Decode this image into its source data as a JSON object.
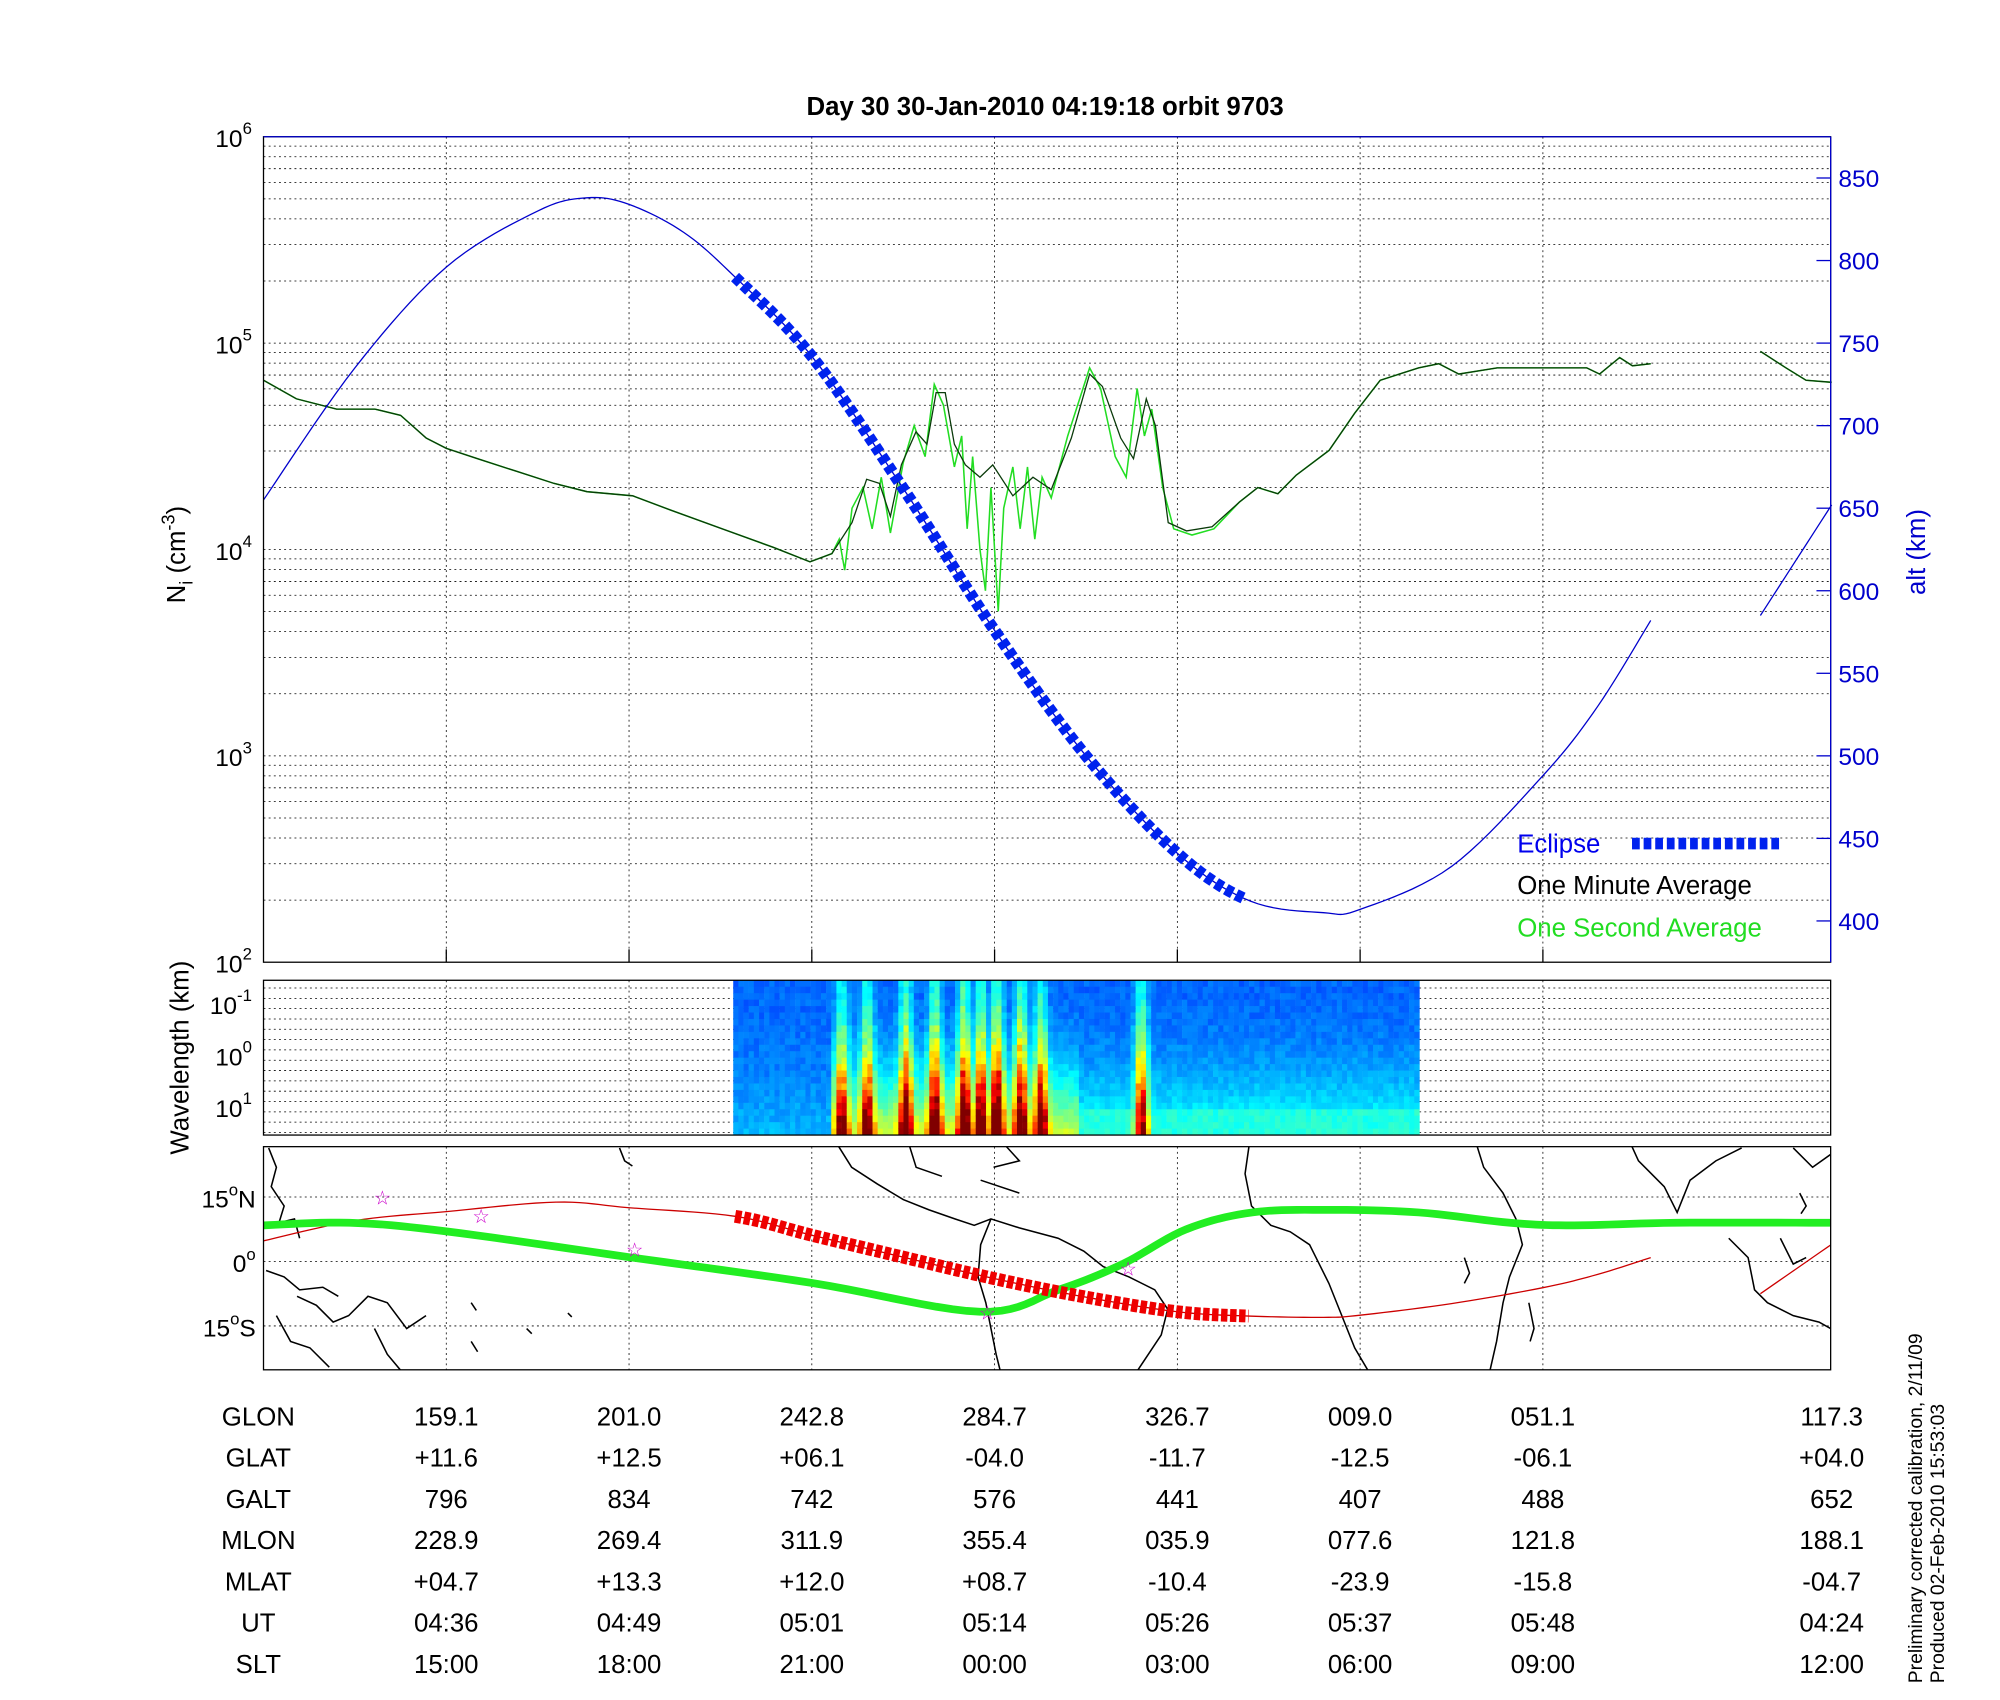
{
  "title": "Day 30  30-Jan-2010 04:19:18   orbit 9703",
  "colors": {
    "alt": "#0000cc",
    "eclipse": "#0022ee",
    "minute": "#000000",
    "second": "#22dd22",
    "track": "#cc0000",
    "eclipse_track": "#ee0000",
    "mag_equator": "#22ee22",
    "star": "#cc00cc"
  },
  "chart_data": [
    {
      "type": "line",
      "panel": "density",
      "title": "Day 30  30-Jan-2010 04:19:18   orbit 9703",
      "xlabel": "",
      "ylabel": "N",
      "ylabel_sub": "i",
      "ylabel_unit": " (cm",
      "ylabel_exp": "-3",
      "ylabel_close": ")",
      "yscale": "log",
      "ylim": [
        100,
        1000000
      ],
      "yticks": [
        {
          "base": "10",
          "exp": "2",
          "log": 2
        },
        {
          "base": "10",
          "exp": "3",
          "log": 3
        },
        {
          "base": "10",
          "exp": "4",
          "log": 4
        },
        {
          "base": "10",
          "exp": "5",
          "log": 5
        },
        {
          "base": "10",
          "exp": "6",
          "log": 6
        }
      ],
      "xlim": [
        0,
        8.58
      ],
      "x_note": "x in units of bottom-table column index",
      "y2label": "alt (km)",
      "y2lim": [
        375,
        875
      ],
      "y2ticks": [
        400,
        450,
        500,
        550,
        600,
        650,
        700,
        750,
        800,
        850
      ],
      "grid": true,
      "legend": {
        "position": "bottom-right",
        "entries": [
          {
            "label": "Eclipse",
            "key": "eclipse"
          },
          {
            "label": "One Minute Average",
            "key": "minute"
          },
          {
            "label": "One Second Average",
            "key": "second"
          }
        ]
      },
      "series": [
        {
          "name": "One Minute Average",
          "key": "minute",
          "log10_Ni_segments": [
            [
              [
                0,
                4.82
              ],
              [
                0.18,
                4.73
              ],
              [
                0.4,
                4.68
              ],
              [
                0.61,
                4.68
              ],
              [
                0.75,
                4.65
              ],
              [
                0.89,
                4.54
              ],
              [
                1,
                4.49
              ],
              [
                1.17,
                4.44
              ],
              [
                1.38,
                4.38
              ],
              [
                1.59,
                4.32
              ],
              [
                1.77,
                4.28
              ],
              [
                2.02,
                4.26
              ],
              [
                2.23,
                4.19
              ],
              [
                2.51,
                4.1
              ],
              [
                2.79,
                4.01
              ],
              [
                2.99,
                3.94
              ],
              [
                3.11,
                3.98
              ],
              [
                3.22,
                4.13
              ],
              [
                3.3,
                4.34
              ],
              [
                3.37,
                4.32
              ],
              [
                3.43,
                4.16
              ],
              [
                3.49,
                4.41
              ],
              [
                3.57,
                4.57
              ],
              [
                3.63,
                4.51
              ],
              [
                3.68,
                4.76
              ],
              [
                3.73,
                4.76
              ],
              [
                3.78,
                4.51
              ],
              [
                3.84,
                4.41
              ],
              [
                3.92,
                4.35
              ],
              [
                3.99,
                4.41
              ],
              [
                4.1,
                4.26
              ],
              [
                4.21,
                4.35
              ],
              [
                4.31,
                4.29
              ],
              [
                4.42,
                4.54
              ],
              [
                4.52,
                4.85
              ],
              [
                4.59,
                4.79
              ],
              [
                4.69,
                4.54
              ],
              [
                4.76,
                4.44
              ],
              [
                4.83,
                4.73
              ],
              [
                4.88,
                4.6
              ],
              [
                4.95,
                4.13
              ],
              [
                5.05,
                4.09
              ],
              [
                5.19,
                4.11
              ],
              [
                5.34,
                4.23
              ],
              [
                5.44,
                4.3
              ],
              [
                5.55,
                4.27
              ],
              [
                5.65,
                4.36
              ],
              [
                5.83,
                4.48
              ],
              [
                5.97,
                4.66
              ],
              [
                6.11,
                4.82
              ],
              [
                6.32,
                4.88
              ],
              [
                6.43,
                4.9
              ],
              [
                6.54,
                4.85
              ],
              [
                6.75,
                4.88
              ],
              [
                7.03,
                4.88
              ],
              [
                7.24,
                4.88
              ],
              [
                7.31,
                4.85
              ],
              [
                7.42,
                4.93
              ],
              [
                7.49,
                4.89
              ],
              [
                7.59,
                4.9
              ]
            ],
            [
              [
                8.19,
                4.96
              ],
              [
                8.33,
                4.88
              ],
              [
                8.44,
                4.82
              ],
              [
                8.58,
                4.81
              ]
            ]
          ]
        },
        {
          "name": "One Second Average",
          "key": "second",
          "log10_Ni_spikes": [
            [
              3.11,
              3.98
            ],
            [
              3.15,
              4.05
            ],
            [
              3.18,
              3.9
            ],
            [
              3.22,
              4.2
            ],
            [
              3.28,
              4.3
            ],
            [
              3.33,
              4.1
            ],
            [
              3.38,
              4.35
            ],
            [
              3.43,
              4.08
            ],
            [
              3.5,
              4.42
            ],
            [
              3.56,
              4.6
            ],
            [
              3.62,
              4.45
            ],
            [
              3.67,
              4.8
            ],
            [
              3.72,
              4.7
            ],
            [
              3.78,
              4.4
            ],
            [
              3.82,
              4.55
            ],
            [
              3.85,
              4.1
            ],
            [
              3.88,
              4.45
            ],
            [
              3.92,
              4.0
            ],
            [
              3.95,
              3.8
            ],
            [
              3.98,
              4.3
            ],
            [
              4.02,
              3.7
            ],
            [
              4.05,
              4.2
            ],
            [
              4.1,
              4.4
            ],
            [
              4.14,
              4.1
            ],
            [
              4.18,
              4.4
            ],
            [
              4.22,
              4.05
            ],
            [
              4.26,
              4.35
            ],
            [
              4.31,
              4.25
            ],
            [
              4.4,
              4.55
            ],
            [
              4.52,
              4.88
            ],
            [
              4.58,
              4.78
            ],
            [
              4.66,
              4.45
            ],
            [
              4.72,
              4.35
            ],
            [
              4.78,
              4.78
            ],
            [
              4.82,
              4.55
            ],
            [
              4.86,
              4.68
            ],
            [
              4.92,
              4.3
            ],
            [
              4.98,
              4.1
            ],
            [
              5.08,
              4.07
            ],
            [
              5.2,
              4.1
            ]
          ]
        },
        {
          "name": "Altitude",
          "key": "alt",
          "alt_km_segments": [
            [
              [
                0,
                655
              ],
              [
                0.5,
                735
              ],
              [
                1,
                796
              ],
              [
                1.5,
                830
              ],
              [
                1.77,
                838
              ],
              [
                2,
                834
              ],
              [
                2.3,
                817
              ],
              [
                2.58,
                790
              ],
              [
                3,
                742
              ],
              [
                3.5,
                662
              ],
              [
                4,
                576
              ],
              [
                4.5,
                500
              ],
              [
                5,
                441
              ],
              [
                5.4,
                412
              ],
              [
                5.8,
                405
              ],
              [
                6,
                407
              ],
              [
                6.5,
                433
              ],
              [
                7,
                488
              ],
              [
                7.3,
                530
              ],
              [
                7.59,
                582
              ]
            ],
            [
              [
                8.19,
                585
              ],
              [
                8.58,
                652
              ]
            ]
          ],
          "eclipse_range": [
            2.58,
            5.39
          ]
        }
      ]
    },
    {
      "type": "heatmap",
      "panel": "spectrogram",
      "ylabel": "Wavelength (km)",
      "yticks": [
        {
          "base": "10",
          "exp": "-1"
        },
        {
          "base": "10",
          "exp": "0"
        },
        {
          "base": "10",
          "exp": "1"
        }
      ],
      "x_range": [
        2.57,
        6.3
      ],
      "streaks": [
        [
          3.15,
          0.7
        ],
        [
          3.29,
          0.75
        ],
        [
          3.5,
          0.85
        ],
        [
          3.66,
          0.9
        ],
        [
          3.82,
          0.95
        ],
        [
          3.91,
          0.85
        ],
        [
          4.0,
          1.0
        ],
        [
          4.13,
          0.9
        ],
        [
          4.24,
          0.8
        ],
        [
          4.79,
          0.85
        ]
      ]
    },
    {
      "type": "line",
      "panel": "map",
      "yticks": [
        {
          "label": "15",
          "deg": "o",
          "hemi": "N",
          "lat": 15
        },
        {
          "label": "0",
          "deg": "o",
          "hemi": "",
          "lat": 0
        },
        {
          "label": "15",
          "deg": "o",
          "hemi": "S",
          "lat": -15
        }
      ],
      "ground_track_lat_segments": [
        [
          [
            0,
            4.8
          ],
          [
            0.5,
            9.5
          ],
          [
            1,
            11.6
          ],
          [
            1.6,
            13.8
          ],
          [
            2,
            12.5
          ],
          [
            2.58,
            10.5
          ],
          [
            3,
            6.1
          ],
          [
            3.5,
            1
          ],
          [
            4,
            -4
          ],
          [
            4.5,
            -8.3
          ],
          [
            5,
            -11.7
          ],
          [
            5.39,
            -12.7
          ],
          [
            5.8,
            -13
          ],
          [
            6,
            -12.5
          ],
          [
            6.5,
            -9.8
          ],
          [
            7,
            -6.1
          ],
          [
            7.3,
            -3
          ],
          [
            7.59,
            0.9
          ]
        ],
        [
          [
            8.19,
            -7.5
          ],
          [
            8.58,
            4
          ]
        ]
      ],
      "eclipse_range": [
        2.58,
        5.39
      ],
      "magnetic_equator_lat": [
        [
          0,
          8.4
        ],
        [
          0.47,
          9
        ],
        [
          1,
          7
        ],
        [
          2,
          1
        ],
        [
          3,
          -5
        ],
        [
          3.92,
          -11.7
        ],
        [
          4.35,
          -6.6
        ],
        [
          4.7,
          -0.6
        ],
        [
          5.05,
          7.5
        ],
        [
          5.41,
          11.4
        ],
        [
          5.83,
          12
        ],
        [
          6.32,
          11.4
        ],
        [
          6.82,
          9
        ],
        [
          7.17,
          8.4
        ],
        [
          7.73,
          9
        ],
        [
          8.58,
          9
        ]
      ],
      "stars": [
        [
          0.65,
          15
        ],
        [
          1.19,
          10.8
        ],
        [
          2.03,
          3
        ],
        [
          3.96,
          -11.7
        ],
        [
          4.73,
          -1.5
        ]
      ]
    }
  ],
  "table": {
    "columns_x": [
      1,
      2,
      3,
      4,
      5,
      6,
      7,
      8.58
    ],
    "rows": [
      {
        "label": "GLON",
        "values": [
          "159.1",
          "201.0",
          "242.8",
          "284.7",
          "326.7",
          "009.0",
          "051.1",
          "117.3"
        ]
      },
      {
        "label": "GLAT",
        "values": [
          "+11.6",
          "+12.5",
          "+06.1",
          "-04.0",
          "-11.7",
          "-12.5",
          "-06.1",
          "+04.0"
        ]
      },
      {
        "label": "GALT",
        "values": [
          "796",
          "834",
          "742",
          "576",
          "441",
          "407",
          "488",
          "652"
        ]
      },
      {
        "label": "MLON",
        "values": [
          "228.9",
          "269.4",
          "311.9",
          "355.4",
          "035.9",
          "077.6",
          "121.8",
          "188.1"
        ]
      },
      {
        "label": "MLAT",
        "values": [
          "+04.7",
          "+13.3",
          "+12.0",
          "+08.7",
          "-10.4",
          "-23.9",
          "-15.8",
          "-04.7"
        ]
      },
      {
        "label": "UT",
        "values": [
          "04:36",
          "04:49",
          "05:01",
          "05:14",
          "05:26",
          "05:37",
          "05:48",
          "04:24"
        ]
      },
      {
        "label": "SLT",
        "values": [
          "15:00",
          "18:00",
          "21:00",
          "00:00",
          "03:00",
          "06:00",
          "09:00",
          "12:00"
        ]
      }
    ]
  },
  "footer": {
    "line1": "Preliminary corrected calibration, 2/11/09",
    "line2": "Produced 02-Feb-2010 15:53:03"
  }
}
